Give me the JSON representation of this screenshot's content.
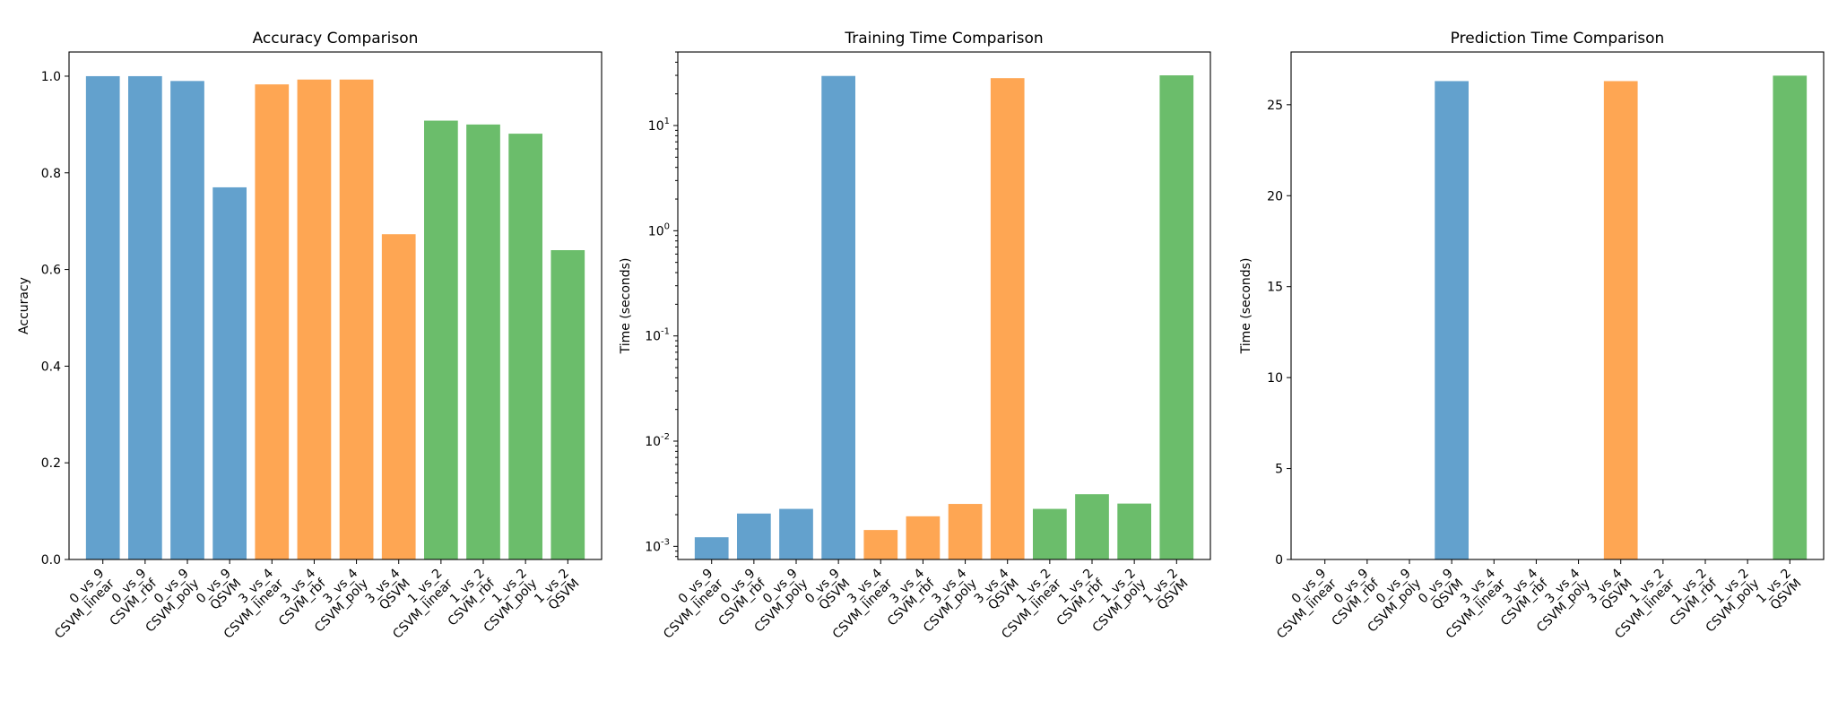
{
  "chart_data": [
    {
      "type": "bar",
      "title": "Accuracy Comparison",
      "xlabel": "",
      "ylabel": "Accuracy",
      "ylim": [
        0,
        1.05
      ],
      "yscale": "linear",
      "yticks": [
        0.0,
        0.2,
        0.4,
        0.6,
        0.8,
        1.0
      ],
      "ytick_labels": [
        "0.0",
        "0.2",
        "0.4",
        "0.6",
        "0.8",
        "1.0"
      ],
      "categories": [
        "0_vs_9\nCSVM_linear",
        "0_vs_9\nCSVM_rbf",
        "0_vs_9\nCSVM_poly",
        "0_vs_9\nQSVM",
        "3_vs_4\nCSVM_linear",
        "3_vs_4\nCSVM_rbf",
        "3_vs_4\nCSVM_poly",
        "3_vs_4\nQSVM",
        "1_vs_2\nCSVM_linear",
        "1_vs_2\nCSVM_rbf",
        "1_vs_2\nCSVM_poly",
        "1_vs_2\nQSVM"
      ],
      "values": [
        1.0,
        1.0,
        0.99,
        0.77,
        0.983,
        0.993,
        0.993,
        0.673,
        0.908,
        0.9,
        0.881,
        0.64
      ],
      "colors": [
        "#63a1cd",
        "#63a1cd",
        "#63a1cd",
        "#63a1cd",
        "#fea653",
        "#fea653",
        "#fea653",
        "#fea653",
        "#6bbd6b",
        "#6bbd6b",
        "#6bbd6b",
        "#6bbd6b"
      ],
      "grid": false
    },
    {
      "type": "bar",
      "title": "Training Time Comparison",
      "xlabel": "",
      "ylabel": "Time (seconds)",
      "ylim": [
        0.00075,
        50
      ],
      "yscale": "log",
      "yticks": [
        0.001,
        0.01,
        0.1,
        1,
        10
      ],
      "ytick_labels": [
        "10^{-3}",
        "10^{-2}",
        "10^{-1}",
        "10^{0}",
        "10^{1}"
      ],
      "categories": [
        "0_vs_9\nCSVM_linear",
        "0_vs_9\nCSVM_rbf",
        "0_vs_9\nCSVM_poly",
        "0_vs_9\nQSVM",
        "3_vs_4\nCSVM_linear",
        "3_vs_4\nCSVM_rbf",
        "3_vs_4\nCSVM_poly",
        "3_vs_4\nQSVM",
        "1_vs_2\nCSVM_linear",
        "1_vs_2\nCSVM_rbf",
        "1_vs_2\nCSVM_poly",
        "1_vs_2\nQSVM"
      ],
      "values": [
        0.00122,
        0.00205,
        0.00227,
        29.6,
        0.00143,
        0.00193,
        0.00253,
        28.2,
        0.00227,
        0.00313,
        0.00255,
        30.0
      ],
      "colors": [
        "#63a1cd",
        "#63a1cd",
        "#63a1cd",
        "#63a1cd",
        "#fea653",
        "#fea653",
        "#fea653",
        "#fea653",
        "#6bbd6b",
        "#6bbd6b",
        "#6bbd6b",
        "#6bbd6b"
      ],
      "grid": false
    },
    {
      "type": "bar",
      "title": "Prediction Time Comparison",
      "xlabel": "",
      "ylabel": "Time (seconds)",
      "ylim": [
        0,
        27.9
      ],
      "yscale": "linear",
      "yticks": [
        0,
        5,
        10,
        15,
        20,
        25
      ],
      "ytick_labels": [
        "0",
        "5",
        "10",
        "15",
        "20",
        "25"
      ],
      "categories": [
        "0_vs_9\nCSVM_linear",
        "0_vs_9\nCSVM_rbf",
        "0_vs_9\nCSVM_poly",
        "0_vs_9\nQSVM",
        "3_vs_4\nCSVM_linear",
        "3_vs_4\nCSVM_rbf",
        "3_vs_4\nCSVM_poly",
        "3_vs_4\nQSVM",
        "1_vs_2\nCSVM_linear",
        "1_vs_2\nCSVM_rbf",
        "1_vs_2\nCSVM_poly",
        "1_vs_2\nQSVM"
      ],
      "values": [
        0.0005,
        0.001,
        0.0008,
        26.3,
        0.0005,
        0.001,
        0.0008,
        26.3,
        0.0005,
        0.001,
        0.0008,
        26.6
      ],
      "colors": [
        "#63a1cd",
        "#63a1cd",
        "#63a1cd",
        "#63a1cd",
        "#fea653",
        "#fea653",
        "#fea653",
        "#fea653",
        "#6bbd6b",
        "#6bbd6b",
        "#6bbd6b",
        "#6bbd6b"
      ],
      "grid": false
    }
  ]
}
